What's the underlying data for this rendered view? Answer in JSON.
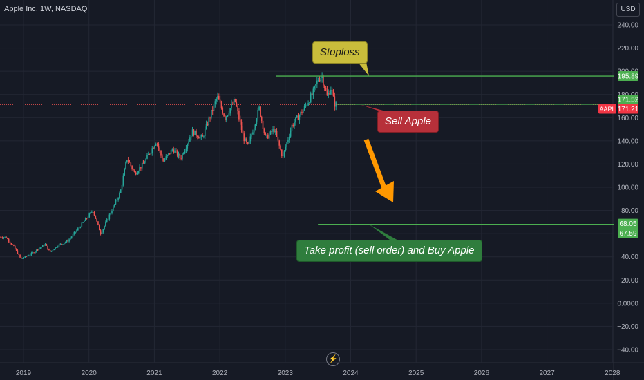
{
  "header": {
    "title": "Apple Inc, 1W, NASDAQ",
    "currency_button": "USD"
  },
  "chart_data": {
    "type": "candlestick",
    "title": "Apple Inc, 1W, NASDAQ",
    "ylim": [
      -47,
      247
    ],
    "y_ticks": [
      "240.00",
      "220.00",
      "200.00",
      "180.00",
      "160.00",
      "140.00",
      "120.00",
      "100.00",
      "80.00",
      "60.00",
      "40.00",
      "20.00",
      "0.0000",
      "−20.00",
      "−40.00"
    ],
    "y_tick_values": [
      240,
      220,
      200,
      180,
      160,
      140,
      120,
      100,
      80,
      60,
      40,
      20,
      0,
      -20,
      -40
    ],
    "x_ticks": [
      "2019",
      "2020",
      "2021",
      "2022",
      "2023",
      "2024",
      "2025",
      "2026",
      "2027",
      "2028"
    ],
    "x_tick_values": [
      2019,
      2020,
      2021,
      2022,
      2023,
      2024,
      2025,
      2026,
      2027,
      2028
    ],
    "xlim": [
      2018.64,
      2028.1
    ],
    "price_path": [
      {
        "t": 2018.64,
        "p": 57
      },
      {
        "t": 2018.75,
        "p": 57
      },
      {
        "t": 2018.88,
        "p": 48
      },
      {
        "t": 2018.98,
        "p": 38
      },
      {
        "t": 2019.15,
        "p": 43
      },
      {
        "t": 2019.35,
        "p": 51
      },
      {
        "t": 2019.42,
        "p": 44
      },
      {
        "t": 2019.55,
        "p": 50
      },
      {
        "t": 2019.7,
        "p": 54
      },
      {
        "t": 2019.85,
        "p": 64
      },
      {
        "t": 2020.08,
        "p": 80
      },
      {
        "t": 2020.2,
        "p": 60
      },
      {
        "t": 2020.35,
        "p": 78
      },
      {
        "t": 2020.5,
        "p": 96
      },
      {
        "t": 2020.6,
        "p": 125
      },
      {
        "t": 2020.72,
        "p": 112
      },
      {
        "t": 2020.85,
        "p": 120
      },
      {
        "t": 2021.05,
        "p": 140
      },
      {
        "t": 2021.15,
        "p": 122
      },
      {
        "t": 2021.3,
        "p": 133
      },
      {
        "t": 2021.42,
        "p": 125
      },
      {
        "t": 2021.6,
        "p": 148
      },
      {
        "t": 2021.75,
        "p": 142
      },
      {
        "t": 2021.85,
        "p": 158
      },
      {
        "t": 2021.98,
        "p": 178
      },
      {
        "t": 2022.1,
        "p": 160
      },
      {
        "t": 2022.25,
        "p": 175
      },
      {
        "t": 2022.38,
        "p": 143
      },
      {
        "t": 2022.45,
        "p": 135
      },
      {
        "t": 2022.62,
        "p": 168
      },
      {
        "t": 2022.72,
        "p": 142
      },
      {
        "t": 2022.85,
        "p": 150
      },
      {
        "t": 2022.98,
        "p": 126
      },
      {
        "t": 2023.12,
        "p": 153
      },
      {
        "t": 2023.3,
        "p": 167
      },
      {
        "t": 2023.45,
        "p": 182
      },
      {
        "t": 2023.52,
        "p": 193
      },
      {
        "t": 2023.58,
        "p": 196
      },
      {
        "t": 2023.66,
        "p": 178
      },
      {
        "t": 2023.72,
        "p": 186
      },
      {
        "t": 2023.77,
        "p": 172
      },
      {
        "t": 2023.79,
        "p": 171.21
      }
    ],
    "last_price": 171.21,
    "price_labels": [
      {
        "label": "195.89",
        "value": 195.89,
        "style": "green"
      },
      {
        "label": "171.52",
        "value": 171.52,
        "style": "green"
      },
      {
        "label": "171.21",
        "value": 171.21,
        "style": "red"
      },
      {
        "label": "68.05",
        "value": 68.05,
        "style": "green"
      },
      {
        "label": "67.59",
        "value": 67.59,
        "style": "green"
      }
    ],
    "symbol_tag": "AAPL",
    "levels": [
      {
        "name": "stoploss",
        "value": 195.89,
        "from_t": 2018.64
      },
      {
        "name": "entry",
        "value": 171.52,
        "from_t": 2023.79
      },
      {
        "name": "take-profit",
        "value": 68.05,
        "from_t": 2023.5
      }
    ],
    "annotations": [
      "Stoploss",
      "Sell Apple",
      "Take profit (sell order) and Buy Apple"
    ],
    "colors": {
      "up": "#26a69a",
      "down": "#ef5350",
      "level": "#4caf50",
      "arrow": "#ff9800",
      "grid": "#232734"
    }
  }
}
